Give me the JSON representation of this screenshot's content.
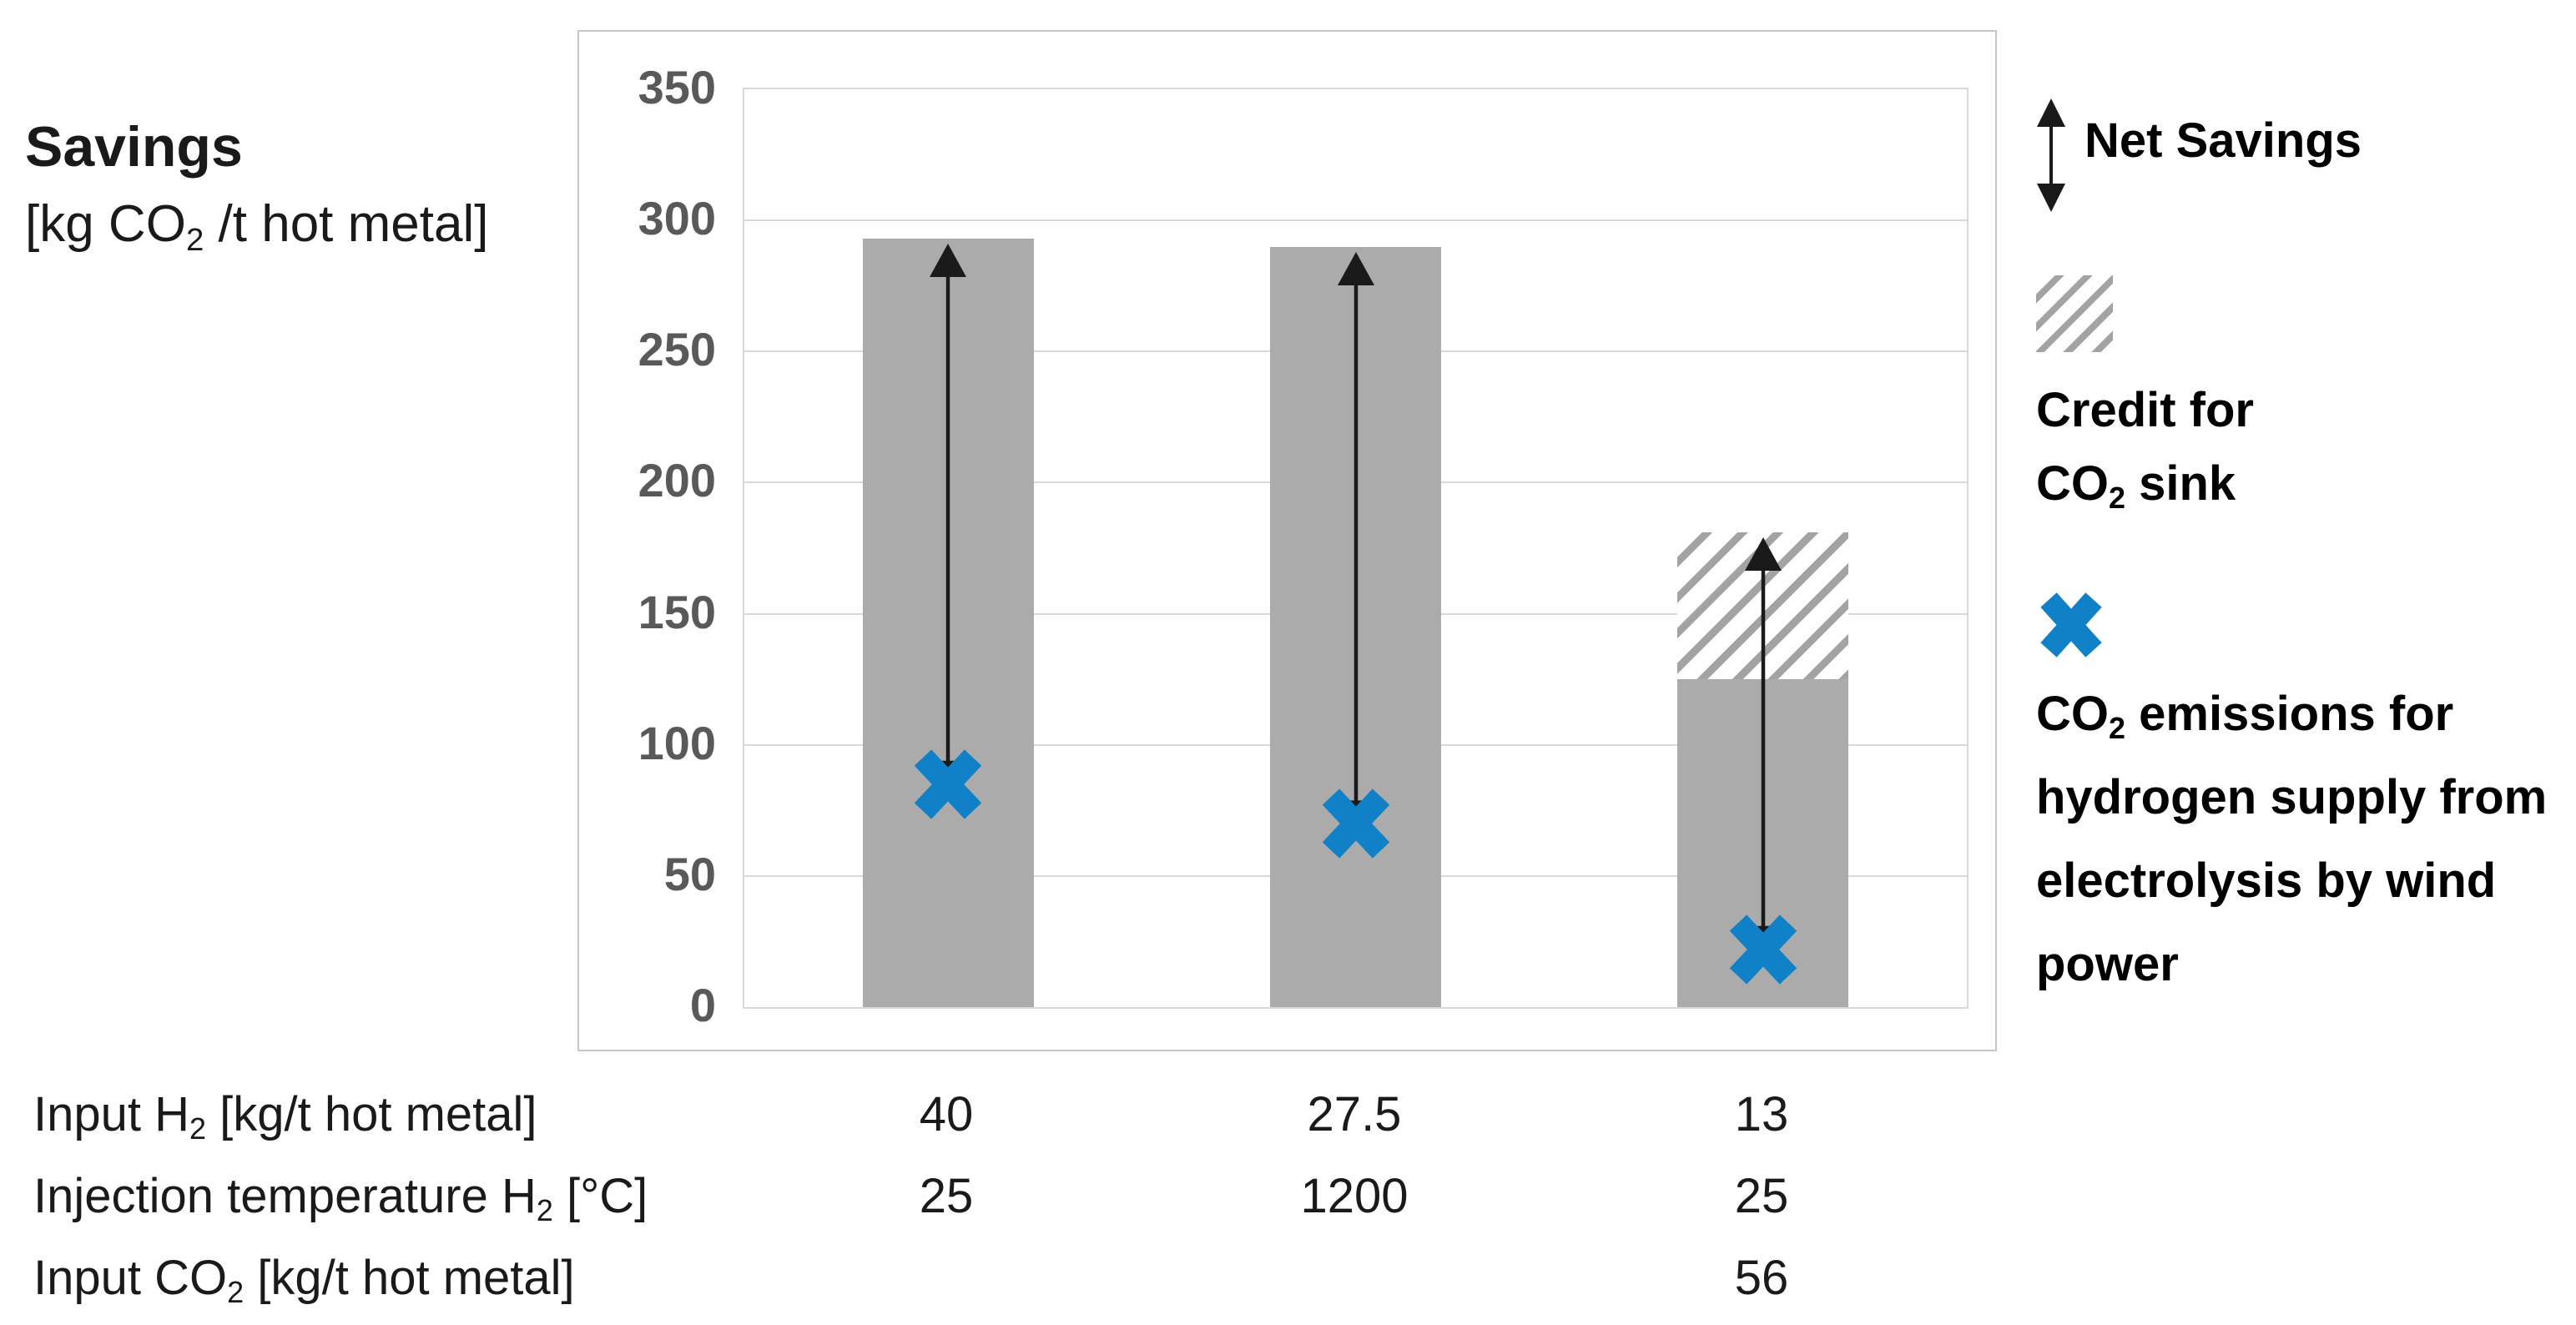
{
  "axis_title": {
    "line1": "Savings",
    "line2_pre": "[kg CO",
    "line2_sub": "2",
    "line2_post": " /t hot metal]"
  },
  "legend": {
    "net_savings_label": "Net Savings",
    "credit_line1": "Credit for",
    "credit_line2_pre": "CO",
    "credit_line2_sub": "2",
    "credit_line2_post": " sink",
    "emissions_line1_pre": "CO",
    "emissions_line1_sub": "2",
    "emissions_line1_post": " emissions for",
    "emissions_line2": "hydrogen supply from",
    "emissions_line3": "electrolysis by wind",
    "emissions_line4": "power"
  },
  "table": {
    "rows": [
      {
        "label_pre": "Input H",
        "label_sub": "2",
        "label_post": " [kg/t hot metal]",
        "values": [
          "40",
          "27.5",
          "13"
        ]
      },
      {
        "label_pre": "Injection temperature H",
        "label_sub": "2",
        "label_post": " [°C]",
        "values": [
          "25",
          "1200",
          "25"
        ]
      },
      {
        "label_pre": "Input CO",
        "label_sub": "2",
        "label_post": " [kg/t hot metal]",
        "values": [
          "",
          "",
          "56"
        ]
      }
    ]
  },
  "chart_data": {
    "type": "bar",
    "ylabel": "Savings [kg CO2 /t hot metal]",
    "ylim": [
      0,
      350
    ],
    "ytick_interval": 50,
    "grid": true,
    "legend_position": "right",
    "categories": [
      "Input H2 40 kg/t, 25 °C",
      "Input H2 27.5 kg/t, 1200 °C",
      "Input H2 13 kg/t + CO2 56 kg/t, 25 °C"
    ],
    "series": [
      {
        "name": "Savings bar (solid grey)",
        "values": [
          293,
          290,
          125
        ]
      },
      {
        "name": "Credit for CO2 sink (hatched bar segment)",
        "values": [
          0,
          0,
          56
        ]
      },
      {
        "name": "CO2 emissions for hydrogen supply from electrolysis by wind power (blue x marker)",
        "values": [
          85,
          70,
          22
        ]
      }
    ],
    "bar_totals": [
      293,
      290,
      181
    ],
    "net_savings_arrows": [
      {
        "from": 85,
        "to": 293
      },
      {
        "from": 70,
        "to": 290
      },
      {
        "from": 22,
        "to": 181
      }
    ],
    "annotation": "Double-headed vertical arrows from each x marker to the bar top represent Net Savings"
  },
  "colors": {
    "bar": "#ABABAB",
    "hatch_stripe": "#A3A3A3",
    "blue": "#1181C7",
    "grid": "#D9D9D9",
    "tick_label": "#595959",
    "box_border": "#C6C6C6",
    "ink": "#1A1A1A"
  }
}
